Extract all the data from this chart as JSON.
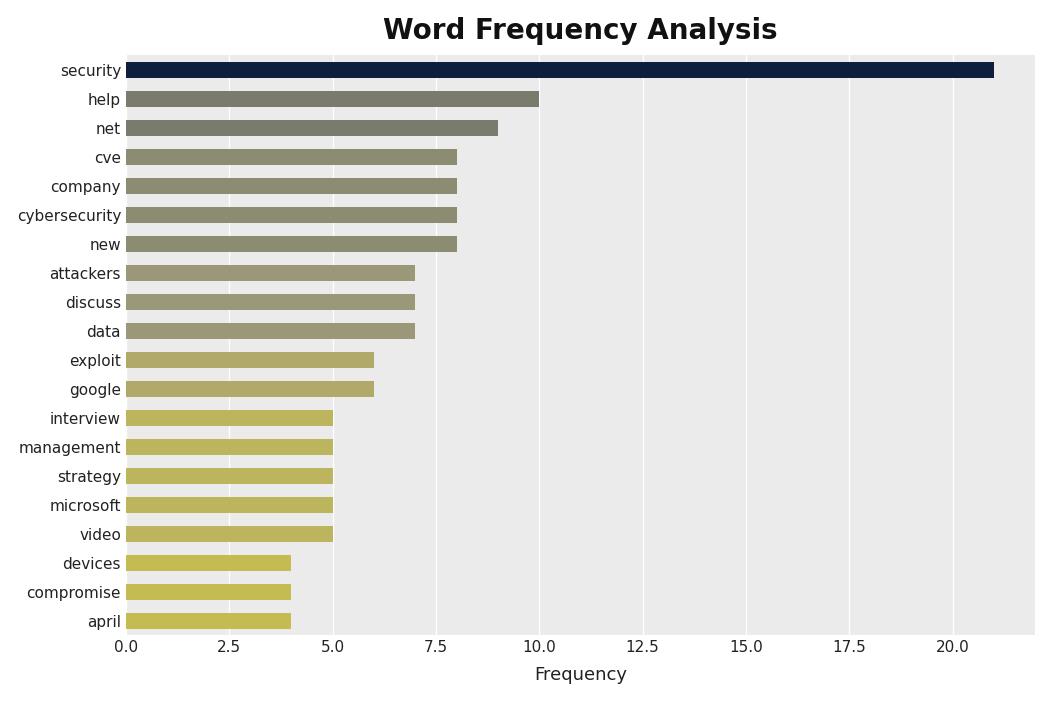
{
  "title": "Word Frequency Analysis",
  "xlabel": "Frequency",
  "categories": [
    "security",
    "help",
    "net",
    "cve",
    "company",
    "cybersecurity",
    "new",
    "attackers",
    "discuss",
    "data",
    "exploit",
    "google",
    "interview",
    "management",
    "strategy",
    "microsoft",
    "video",
    "devices",
    "compromise",
    "april"
  ],
  "values": [
    21,
    10,
    9,
    8,
    8,
    8,
    8,
    7,
    7,
    7,
    6,
    6,
    5,
    5,
    5,
    5,
    5,
    4,
    4,
    4
  ],
  "bar_colors": [
    "#0d1f3c",
    "#7a7a6d",
    "#7a7a6d",
    "#8c8c72",
    "#8c8c72",
    "#8c8c72",
    "#8c8c72",
    "#9a9878",
    "#9a9878",
    "#9a9878",
    "#b0a96a",
    "#b0a96a",
    "#bcb55e",
    "#bcb55e",
    "#bcb55e",
    "#bcb55e",
    "#bcb55e",
    "#c4bc52",
    "#c4bc52",
    "#c4bc52"
  ],
  "plot_bg_color": "#ebebeb",
  "fig_bg_color": "#ffffff",
  "xlim": [
    0,
    22
  ],
  "xticks": [
    0.0,
    2.5,
    5.0,
    7.5,
    10.0,
    12.5,
    15.0,
    17.5,
    20.0
  ],
  "xtick_labels": [
    "0.0",
    "2.5",
    "5.0",
    "7.5",
    "10.0",
    "12.5",
    "15.0",
    "17.5",
    "20.0"
  ],
  "title_fontsize": 20,
  "xlabel_fontsize": 13,
  "tick_fontsize": 11,
  "bar_height": 0.55
}
